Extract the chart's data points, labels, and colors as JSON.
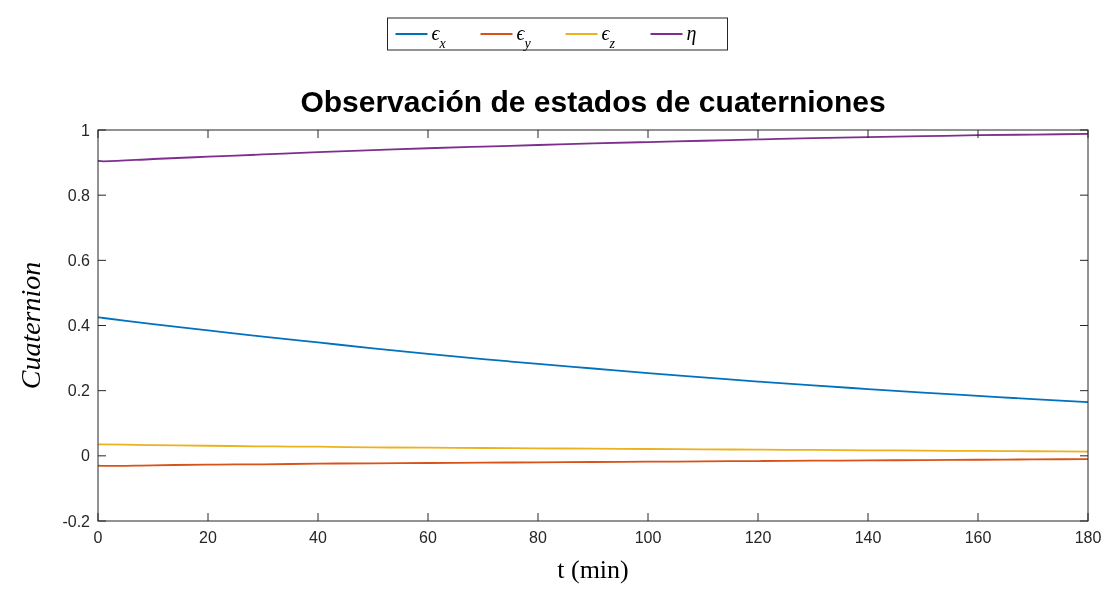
{
  "chart_data": {
    "type": "line",
    "title": "Observación de estados de cuaterniones",
    "xlabel": "t (min)",
    "ylabel": "Cuaternion",
    "x": [
      0,
      1,
      10,
      20,
      30,
      40,
      50,
      60,
      70,
      80,
      90,
      100,
      110,
      120,
      130,
      140,
      150,
      160,
      170,
      180
    ],
    "series": [
      {
        "name": "ϵ$_{x}$",
        "color": "#0072bd",
        "values": [
          0.425,
          0.423,
          0.404,
          0.385,
          0.366,
          0.348,
          0.33,
          0.313,
          0.297,
          0.282,
          0.268,
          0.254,
          0.241,
          0.228,
          0.216,
          0.205,
          0.194,
          0.184,
          0.174,
          0.165
        ]
      },
      {
        "name": "ϵ$_{y}$",
        "color": "#d95319",
        "values": [
          -0.03,
          -0.031,
          -0.029,
          -0.027,
          -0.026,
          -0.024,
          -0.023,
          -0.022,
          -0.021,
          -0.02,
          -0.019,
          -0.018,
          -0.017,
          -0.016,
          -0.015,
          -0.014,
          -0.013,
          -0.012,
          -0.011,
          -0.01
        ]
      },
      {
        "name": "ϵ$_{z}$",
        "color": "#edb120",
        "values": [
          0.035,
          0.035,
          0.033,
          0.031,
          0.029,
          0.028,
          0.026,
          0.025,
          0.024,
          0.023,
          0.022,
          0.021,
          0.02,
          0.019,
          0.018,
          0.017,
          0.016,
          0.015,
          0.014,
          0.013
        ]
      },
      {
        "name": "η",
        "color": "#7e2f8e",
        "values": [
          0.905,
          0.904,
          0.911,
          0.918,
          0.925,
          0.932,
          0.938,
          0.944,
          0.949,
          0.954,
          0.959,
          0.963,
          0.967,
          0.971,
          0.975,
          0.978,
          0.981,
          0.984,
          0.986,
          0.988
        ]
      }
    ],
    "xlim": [
      0,
      180
    ],
    "xticks": [
      0,
      20,
      40,
      60,
      80,
      100,
      120,
      140,
      160,
      180
    ],
    "ylim": [
      -0.2,
      1
    ],
    "yticks": [
      -0.2,
      0,
      0.2,
      0.4,
      0.6,
      0.8,
      1
    ],
    "grid": false,
    "legend": "top",
    "marker": "none",
    "line_style": "solid"
  }
}
